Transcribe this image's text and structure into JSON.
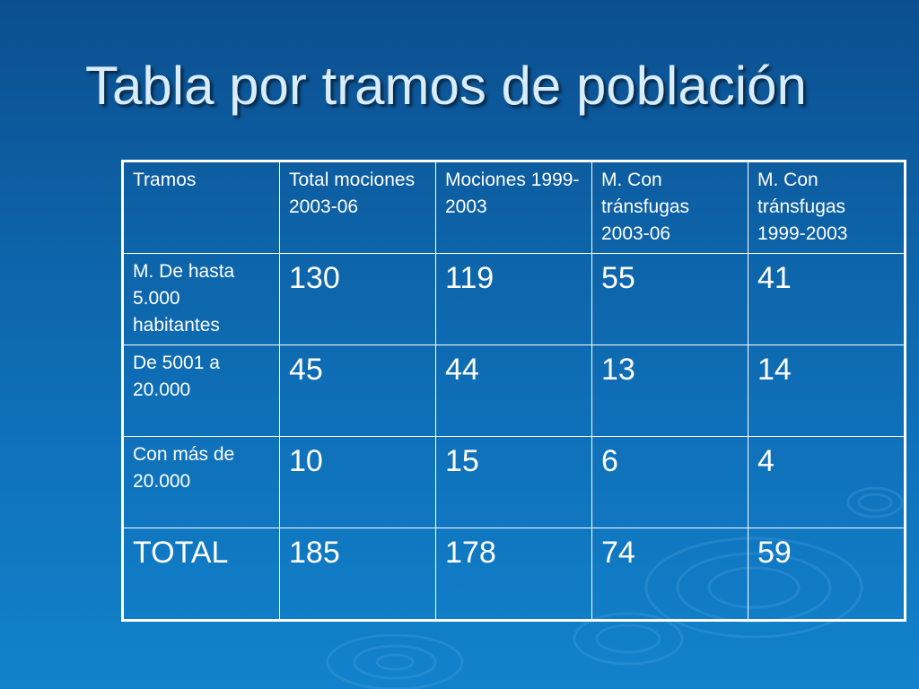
{
  "slide": {
    "title": "Tabla por tramos de población"
  },
  "table": {
    "headers": [
      "Tramos",
      "Total mociones 2003-06",
      "Mociones 1999-2003",
      "M. Con tránsfugas 2003-06",
      "M. Con tránsfugas 1999-2003"
    ],
    "rows": [
      {
        "label": "M. De hasta 5.000 habitantes",
        "values": [
          "130",
          "119",
          "55",
          "41"
        ]
      },
      {
        "label": "De 5001 a 20.000",
        "values": [
          "45",
          "44",
          "13",
          "14"
        ]
      },
      {
        "label": "Con más de 20.000",
        "values": [
          "10",
          "15",
          "6",
          "4"
        ]
      },
      {
        "label": "TOTAL",
        "values": [
          "185",
          "178",
          "74",
          "59"
        ]
      }
    ]
  },
  "colors": {
    "background_top": "#0c4f8f",
    "background_bottom": "#1282cc",
    "title_text": "#d9ecfb",
    "table_border": "#ffffff"
  }
}
